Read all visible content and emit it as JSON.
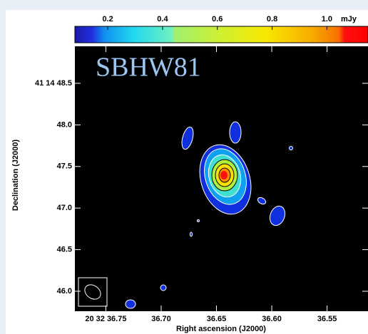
{
  "chart_data": {
    "type": "contour",
    "title": "SBHW81",
    "xlabel": "Right ascension (J2000)",
    "ylabel": "Declination (J2000)",
    "colorbar_unit": "mJy",
    "clim": [
      0.08,
      1.15
    ],
    "cticks": [
      {
        "value": 0.2,
        "label": "0.2"
      },
      {
        "value": 0.4,
        "label": "0.4"
      },
      {
        "value": 0.6,
        "label": "0.6"
      },
      {
        "value": 0.8,
        "label": "0.8"
      },
      {
        "value": 1.0,
        "label": "1.0"
      }
    ],
    "xlim": [
      36.778,
      36.513
    ],
    "xticks": [
      {
        "value": 36.75,
        "label": "20 32 36.75"
      },
      {
        "value": 36.7,
        "label": "36.70"
      },
      {
        "value": 36.65,
        "label": "36.65"
      },
      {
        "value": 36.6,
        "label": "36.60"
      },
      {
        "value": 36.55,
        "label": "36.55"
      }
    ],
    "ylim": [
      45.76,
      48.945
    ],
    "yticks": [
      {
        "value": 46.0,
        "label": "46.0"
      },
      {
        "value": 46.5,
        "label": "46.5"
      },
      {
        "value": 47.0,
        "label": "47.0"
      },
      {
        "value": 47.5,
        "label": "47.5"
      },
      {
        "value": 48.0,
        "label": "48.0"
      },
      {
        "value": 48.5,
        "label": "41 14 48.5"
      }
    ]
  }
}
